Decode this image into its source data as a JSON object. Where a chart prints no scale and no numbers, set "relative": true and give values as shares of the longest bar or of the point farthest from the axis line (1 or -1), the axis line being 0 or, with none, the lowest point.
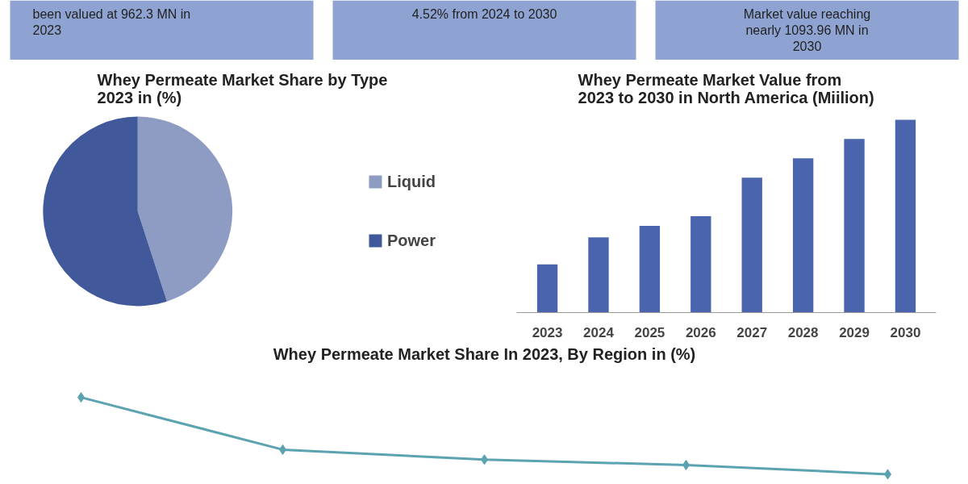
{
  "chart_data": [
    {
      "type": "other",
      "annotations": [
        "been valued at 962.3 MN in\n2023",
        "4.52% from 2024 to 2030",
        "Market value reaching\nnearly 1093.96 MN in\n2030"
      ],
      "color": "#8fa3d2"
    },
    {
      "type": "pie",
      "title": "Whey Permeate Market Share by Type\n2023 in (%)",
      "categories": [
        "Liquid",
        "Power"
      ],
      "values": [
        45,
        55
      ],
      "colors": [
        "#8e9cc4",
        "#41599a"
      ],
      "legend": "right"
    },
    {
      "type": "bar",
      "title": "Whey Permeate Market Value from\n2023 to 2030 in North America (Miilion)",
      "categories": [
        "2023",
        "2024",
        "2025",
        "2026",
        "2027",
        "2028",
        "2029",
        "2030"
      ],
      "relative": true,
      "grid": false,
      "series": [
        {
          "color": "#4a64ad",
          "values": [
            0.25,
            0.39,
            0.45,
            0.5,
            0.7,
            0.8,
            0.9,
            1
          ]
        }
      ]
    },
    {
      "type": "line",
      "title": "Whey Permeate Market Share In 2023, By Region in (%)",
      "categories": [
        null,
        null,
        null,
        null,
        null
      ],
      "relative": true,
      "marker": "diamond",
      "line_style": "solid",
      "grid": false,
      "series": [
        {
          "color": "#5ba3b0",
          "values": [
            1,
            0.32,
            0.19,
            0.12,
            0
          ]
        }
      ]
    }
  ]
}
